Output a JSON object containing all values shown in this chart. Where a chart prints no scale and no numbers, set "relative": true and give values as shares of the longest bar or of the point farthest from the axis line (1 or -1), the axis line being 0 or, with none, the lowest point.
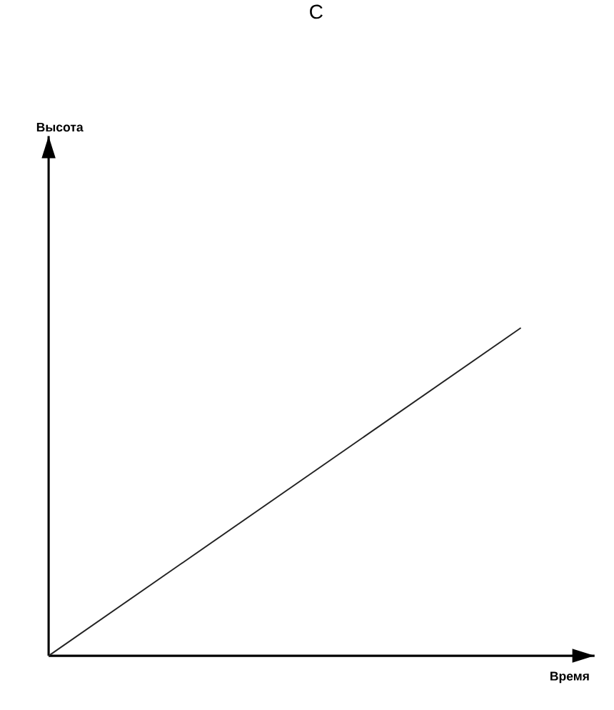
{
  "chart_data": {
    "type": "line",
    "title": "C",
    "xlabel": "Время",
    "annotations": [
      "Высота"
    ],
    "relative": true,
    "categories": [
      null,
      null
    ],
    "series": [
      {
        "color": "#222222",
        "values": [
          0,
          1
        ]
      }
    ]
  }
}
